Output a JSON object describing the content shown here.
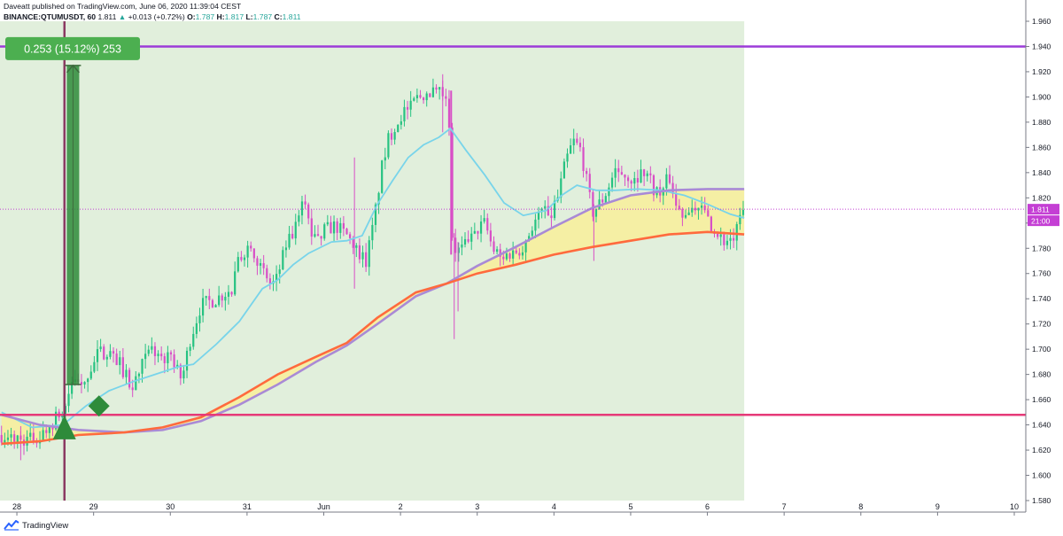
{
  "header": {
    "line1": "Daveatt published on TradingView.com, June 06, 2020 11:39:04 CEST",
    "symbol": "BINANCE:QTUMUSDT, 60",
    "last": "1.811",
    "change": "+0.013 (+0.72%)",
    "o_label": "O:",
    "o": "1.787",
    "h_label": "H:",
    "h": "1.817",
    "l_label": "L:",
    "l": "1.787",
    "c_label": "C:",
    "c": "1.811"
  },
  "footer": {
    "brand": "TradingView"
  },
  "colors": {
    "shade": "#e1efdc",
    "up": "#26c281",
    "down": "#d84fc6",
    "ema_fast": "#78d4ea",
    "ema_mid": "#ff6a3d",
    "ema_slow": "#a98ad6",
    "band_fill": "#f8ef9a",
    "resistance": "#9c3cd8",
    "support": "#e63a78",
    "signal": "#2e8b3a",
    "price_tag": "#c43fd4"
  },
  "chart_data": {
    "type": "candlestick",
    "ylim": [
      1.58,
      1.96
    ],
    "y_ticks": [
      "1.580",
      "1.600",
      "1.620",
      "1.640",
      "1.660",
      "1.680",
      "1.700",
      "1.720",
      "1.740",
      "1.760",
      "1.780",
      "1.800",
      "1.820",
      "1.840",
      "1.860",
      "1.880",
      "1.900",
      "1.920",
      "1.940",
      "1.960"
    ],
    "x_ticks": [
      {
        "label": "28",
        "day": 0
      },
      {
        "label": "29",
        "day": 1
      },
      {
        "label": "30",
        "day": 2
      },
      {
        "label": "31",
        "day": 3
      },
      {
        "label": "Jun",
        "day": 4
      },
      {
        "label": "2",
        "day": 5
      },
      {
        "label": "3",
        "day": 6
      },
      {
        "label": "4",
        "day": 7
      },
      {
        "label": "5",
        "day": 8
      },
      {
        "label": "6",
        "day": 9
      },
      {
        "label": "7",
        "day": 10
      },
      {
        "label": "8",
        "day": 11
      },
      {
        "label": "9",
        "day": 12
      },
      {
        "label": "10",
        "day": 13
      }
    ],
    "xlim_days": [
      -0.22,
      13.15
    ],
    "last_day": 9.48,
    "close_path": [
      [
        -0.2,
        1.632
      ],
      [
        0.1,
        1.628
      ],
      [
        0.3,
        1.63
      ],
      [
        0.5,
        1.645
      ],
      [
        0.62,
        1.65
      ],
      [
        0.7,
        1.672
      ],
      [
        0.9,
        1.678
      ],
      [
        1.05,
        1.695
      ],
      [
        1.2,
        1.7
      ],
      [
        1.35,
        1.688
      ],
      [
        1.5,
        1.668
      ],
      [
        1.6,
        1.684
      ],
      [
        1.75,
        1.7
      ],
      [
        1.9,
        1.693
      ],
      [
        2.05,
        1.69
      ],
      [
        2.15,
        1.675
      ],
      [
        2.25,
        1.706
      ],
      [
        2.4,
        1.735
      ],
      [
        2.6,
        1.74
      ],
      [
        2.8,
        1.748
      ],
      [
        2.9,
        1.772
      ],
      [
        3.05,
        1.785
      ],
      [
        3.2,
        1.76
      ],
      [
        3.35,
        1.748
      ],
      [
        3.5,
        1.78
      ],
      [
        3.65,
        1.798
      ],
      [
        3.75,
        1.82
      ],
      [
        3.85,
        1.79
      ],
      [
        4.0,
        1.794
      ],
      [
        4.15,
        1.798
      ],
      [
        4.3,
        1.79
      ],
      [
        4.45,
        1.778
      ],
      [
        4.55,
        1.77
      ],
      [
        4.65,
        1.8
      ],
      [
        4.75,
        1.842
      ],
      [
        4.85,
        1.868
      ],
      [
        5.0,
        1.885
      ],
      [
        5.2,
        1.898
      ],
      [
        5.35,
        1.905
      ],
      [
        5.5,
        1.902
      ],
      [
        5.62,
        1.907
      ],
      [
        5.68,
        1.78
      ],
      [
        5.78,
        1.778
      ],
      [
        5.9,
        1.785
      ],
      [
        6.0,
        1.795
      ],
      [
        6.1,
        1.8
      ],
      [
        6.2,
        1.78
      ],
      [
        6.3,
        1.772
      ],
      [
        6.45,
        1.776
      ],
      [
        6.6,
        1.782
      ],
      [
        6.7,
        1.796
      ],
      [
        6.85,
        1.81
      ],
      [
        6.95,
        1.808
      ],
      [
        7.05,
        1.82
      ],
      [
        7.15,
        1.848
      ],
      [
        7.25,
        1.865
      ],
      [
        7.35,
        1.858
      ],
      [
        7.42,
        1.835
      ],
      [
        7.5,
        1.808
      ],
      [
        7.65,
        1.82
      ],
      [
        7.8,
        1.842
      ],
      [
        7.95,
        1.838
      ],
      [
        8.1,
        1.838
      ],
      [
        8.2,
        1.842
      ],
      [
        8.3,
        1.828
      ],
      [
        8.4,
        1.822
      ],
      [
        8.5,
        1.838
      ],
      [
        8.6,
        1.812
      ],
      [
        8.72,
        1.806
      ],
      [
        8.85,
        1.815
      ],
      [
        8.95,
        1.81
      ],
      [
        9.05,
        1.798
      ],
      [
        9.15,
        1.785
      ],
      [
        9.25,
        1.787
      ],
      [
        9.35,
        1.788
      ],
      [
        9.48,
        1.811
      ]
    ],
    "spikes": [
      {
        "day": 4.4,
        "high": 1.852,
        "low": 1.748
      },
      {
        "day": 5.55,
        "high": 1.918,
        "low": 1.872
      },
      {
        "day": 5.7,
        "high": 1.792,
        "low": 1.708
      },
      {
        "day": 5.75,
        "high": 1.785,
        "low": 1.73
      },
      {
        "day": 7.52,
        "high": 1.815,
        "low": 1.77
      },
      {
        "day": 0.05,
        "high": 1.635,
        "low": 1.612
      }
    ],
    "ema_fast": [
      [
        -0.2,
        1.65
      ],
      [
        0.2,
        1.638
      ],
      [
        0.6,
        1.64
      ],
      [
        0.9,
        1.655
      ],
      [
        1.2,
        1.667
      ],
      [
        1.5,
        1.674
      ],
      [
        1.8,
        1.68
      ],
      [
        2.1,
        1.686
      ],
      [
        2.3,
        1.688
      ],
      [
        2.6,
        1.704
      ],
      [
        2.9,
        1.722
      ],
      [
        3.2,
        1.748
      ],
      [
        3.4,
        1.755
      ],
      [
        3.6,
        1.767
      ],
      [
        3.8,
        1.776
      ],
      [
        4.1,
        1.785
      ],
      [
        4.3,
        1.786
      ],
      [
        4.5,
        1.79
      ],
      [
        4.7,
        1.815
      ],
      [
        4.9,
        1.834
      ],
      [
        5.1,
        1.852
      ],
      [
        5.3,
        1.862
      ],
      [
        5.5,
        1.868
      ],
      [
        5.65,
        1.875
      ],
      [
        5.85,
        1.858
      ],
      [
        6.1,
        1.838
      ],
      [
        6.35,
        1.816
      ],
      [
        6.6,
        1.806
      ],
      [
        6.9,
        1.81
      ],
      [
        7.1,
        1.822
      ],
      [
        7.3,
        1.83
      ],
      [
        7.55,
        1.826
      ],
      [
        7.8,
        1.826
      ],
      [
        8.1,
        1.827
      ],
      [
        8.4,
        1.826
      ],
      [
        8.7,
        1.822
      ],
      [
        9.0,
        1.815
      ],
      [
        9.3,
        1.807
      ],
      [
        9.48,
        1.804
      ]
    ],
    "ema_mid": [
      [
        -0.2,
        1.625
      ],
      [
        0.3,
        1.627
      ],
      [
        0.8,
        1.632
      ],
      [
        1.4,
        1.634
      ],
      [
        1.9,
        1.638
      ],
      [
        2.4,
        1.646
      ],
      [
        2.9,
        1.662
      ],
      [
        3.4,
        1.68
      ],
      [
        3.9,
        1.694
      ],
      [
        4.3,
        1.705
      ],
      [
        4.7,
        1.725
      ],
      [
        5.2,
        1.745
      ],
      [
        5.6,
        1.752
      ],
      [
        6.0,
        1.76
      ],
      [
        6.5,
        1.767
      ],
      [
        7.0,
        1.775
      ],
      [
        7.5,
        1.781
      ],
      [
        8.0,
        1.786
      ],
      [
        8.5,
        1.791
      ],
      [
        9.0,
        1.793
      ],
      [
        9.48,
        1.791
      ]
    ],
    "ema_slow": [
      [
        -0.2,
        1.648
      ],
      [
        0.3,
        1.64
      ],
      [
        0.8,
        1.636
      ],
      [
        1.4,
        1.634
      ],
      [
        1.9,
        1.636
      ],
      [
        2.4,
        1.643
      ],
      [
        2.9,
        1.656
      ],
      [
        3.4,
        1.672
      ],
      [
        3.9,
        1.69
      ],
      [
        4.3,
        1.703
      ],
      [
        4.7,
        1.72
      ],
      [
        5.2,
        1.742
      ],
      [
        5.6,
        1.752
      ],
      [
        6.0,
        1.766
      ],
      [
        6.5,
        1.781
      ],
      [
        7.0,
        1.797
      ],
      [
        7.5,
        1.812
      ],
      [
        8.0,
        1.822
      ],
      [
        8.5,
        1.826
      ],
      [
        9.0,
        1.827
      ],
      [
        9.48,
        1.827
      ]
    ],
    "resistance_level": 1.94,
    "support_level": 1.648,
    "current_price": 1.811,
    "current_price_label": "1.811",
    "countdown_label": "21:00",
    "measure": {
      "label": "0.253 (15.12%) 253",
      "from_price": 1.672,
      "to_price": 1.925,
      "day": 0.72,
      "entry_day": 0.62
    },
    "signals": [
      {
        "shape": "triangle-up",
        "day": 0.62,
        "price": 1.637
      },
      {
        "shape": "diamond",
        "day": 1.07,
        "price": 1.655
      }
    ]
  }
}
